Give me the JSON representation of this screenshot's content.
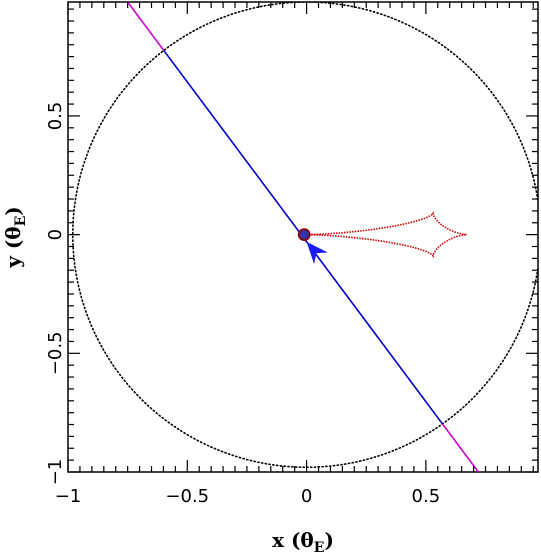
{
  "chart_data": {
    "type": "line",
    "title": "",
    "xlabel": {
      "main": "x (θ",
      "sub": "E",
      "close": ")"
    },
    "ylabel": {
      "main": "y (θ",
      "sub": "E",
      "close": ")"
    },
    "xlim": [
      -1.0,
      0.97
    ],
    "ylim": [
      -1.0,
      0.98
    ],
    "x_ticks": [
      {
        "v": -1,
        "label": "−1"
      },
      {
        "v": -0.5,
        "label": "−0.5"
      },
      {
        "v": 0,
        "label": "0"
      },
      {
        "v": 0.5,
        "label": "0.5"
      }
    ],
    "y_ticks": [
      {
        "v": -1,
        "label": "−1"
      },
      {
        "v": -0.5,
        "label": "−0.5"
      },
      {
        "v": 0,
        "label": "0"
      },
      {
        "v": 0.5,
        "label": "0.5"
      }
    ],
    "einstein_ring": {
      "cx": 0,
      "cy": 0,
      "r": 0.98,
      "color": "#000000"
    },
    "source_trajectory": {
      "start": [
        -0.75,
        0.98
      ],
      "end": [
        0.72,
        -1.0
      ],
      "inside_color": "#0000cc",
      "outside_color": "#cc00cc"
    },
    "caustic": {
      "color": "#cc0000",
      "cusps": [
        [
          0.0,
          0.0
        ],
        [
          0.53,
          0.09
        ],
        [
          0.67,
          0.0
        ],
        [
          0.53,
          -0.09
        ]
      ]
    },
    "source_point": {
      "x": -0.01,
      "y": 0.0,
      "color": "#3333aa"
    },
    "direction_arrow": {
      "tip": [
        0.0,
        -0.03
      ],
      "from": [
        0.06,
        -0.1
      ],
      "color": "#1a1aff"
    }
  }
}
